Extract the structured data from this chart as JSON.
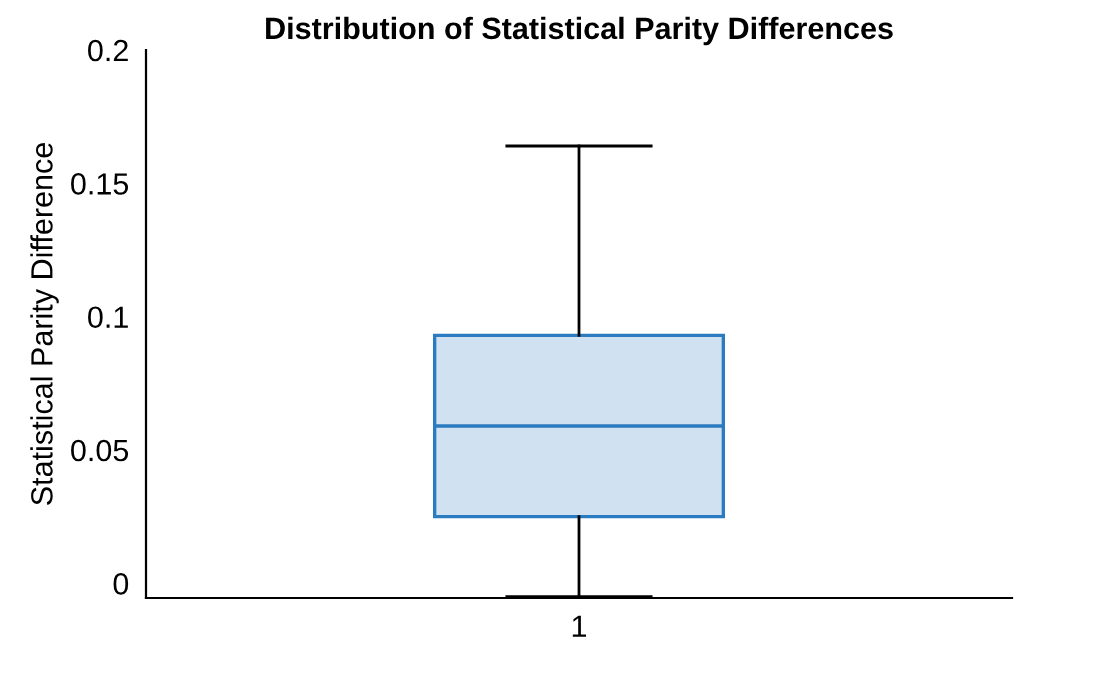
{
  "chart_data": {
    "type": "box",
    "title": "Distribution of Statistical Parity Differences",
    "ylabel": "Statistical Parity Difference",
    "categories": [
      "1"
    ],
    "boxes": [
      {
        "low": -0.005,
        "q1": 0.025,
        "median": 0.059,
        "q3": 0.093,
        "high": 0.164
      }
    ],
    "color": "#2a7bbf",
    "ylim": [
      -0.0055,
      0.2
    ],
    "yticks": [
      {
        "value": 0,
        "label": "0"
      },
      0.05,
      {
        "value": 0.1,
        "label": "0.1"
      },
      0.15,
      {
        "value": 0.2,
        "label": "0.2"
      }
    ],
    "grid": false,
    "legend": false
  }
}
